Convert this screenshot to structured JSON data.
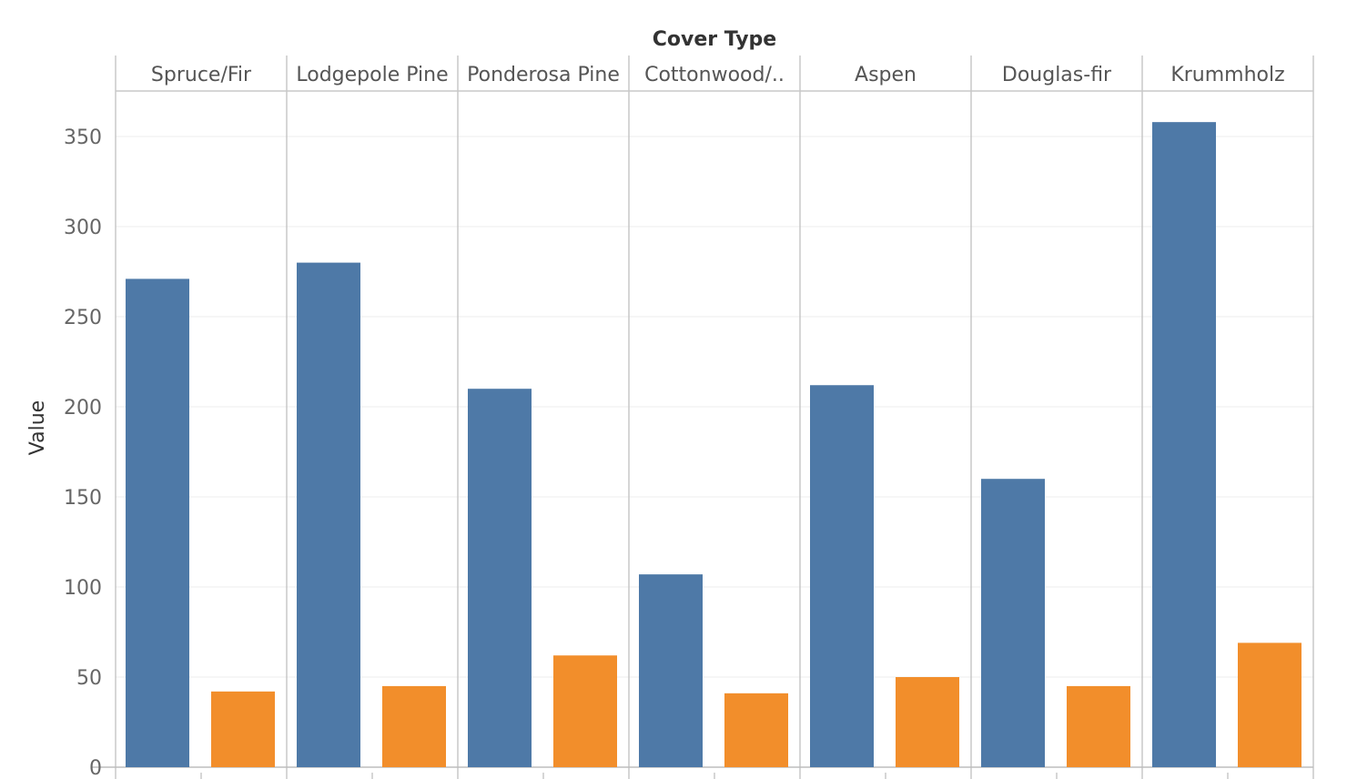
{
  "chart_data": {
    "type": "bar",
    "header_title": "Cover Type",
    "ylabel": "Value",
    "categories": [
      "Spruce/Fir",
      "Lodgepole Pine",
      "Ponderosa Pine",
      "Cottonwood/..",
      "Aspen",
      "Douglas-fir",
      "Krummholz"
    ],
    "series": [
      {
        "color": "#4e79a7",
        "values": [
          271,
          280,
          210,
          107,
          212,
          160,
          358
        ]
      },
      {
        "color": "#f28e2b",
        "values": [
          42,
          45,
          62,
          41,
          50,
          45,
          69
        ]
      }
    ],
    "yticks": [
      0,
      50,
      100,
      150,
      200,
      250,
      300,
      350
    ],
    "ylim": [
      0,
      375
    ],
    "grid": true,
    "legend": "none"
  }
}
